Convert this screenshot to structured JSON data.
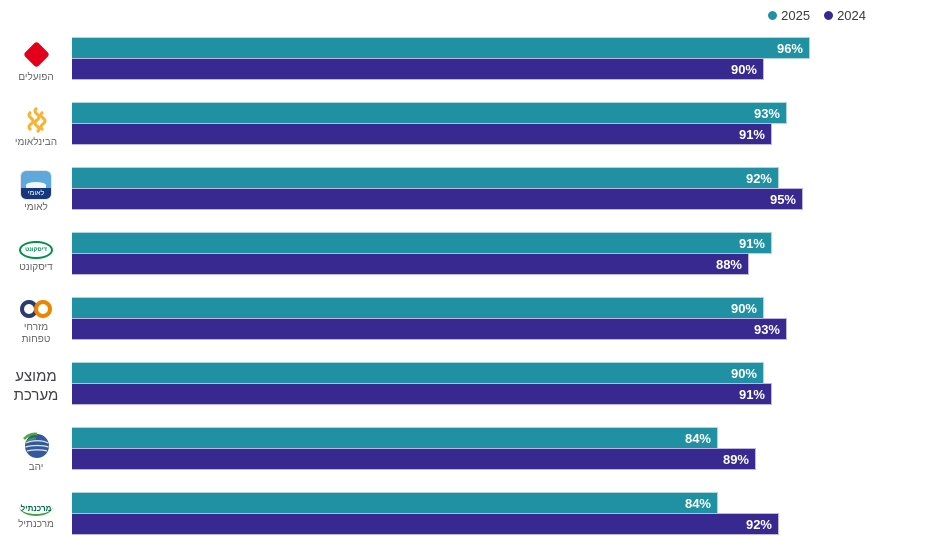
{
  "chart_data": {
    "type": "bar",
    "orientation": "horizontal",
    "title": "",
    "xlabel": "",
    "ylabel": "",
    "value_suffix": "%",
    "xlim": [
      0,
      100
    ],
    "grid": false,
    "legend_position": "top-right",
    "categories": [
      "הפועלים",
      "הבינלאומי",
      "לאומי",
      "דיסקונט",
      "מזרחי טפחות",
      "ממוצע מערכת",
      "יהב",
      "מרכנתיל"
    ],
    "series": [
      {
        "name": "2025",
        "color": "#1f91a2",
        "values": [
          96,
          93,
          92,
          91,
          90,
          90,
          84,
          84
        ]
      },
      {
        "name": "2024",
        "color": "#37298f",
        "values": [
          90,
          91,
          95,
          88,
          93,
          91,
          89,
          92
        ]
      }
    ],
    "rows_meta": [
      {
        "icon": "bank-hapoalim-logo-icon",
        "icon_text": "",
        "label_lines": [
          "הפועלים"
        ],
        "emphasis": false
      },
      {
        "icon": "bank-international-logo-icon",
        "icon_text": "",
        "label_lines": [
          "הבינלאומי"
        ],
        "emphasis": false
      },
      {
        "icon": "bank-leumi-logo-icon",
        "icon_text": "לאומי",
        "label_lines": [
          "לאומי"
        ],
        "emphasis": false
      },
      {
        "icon": "bank-discount-logo-icon",
        "icon_text": "דיסקונט",
        "label_lines": [
          "דיסקונט"
        ],
        "emphasis": false
      },
      {
        "icon": "bank-mizrahi-tefahot-logo-icon",
        "icon_text": "",
        "label_lines": [
          "מזרחי",
          "טפחות"
        ],
        "emphasis": false
      },
      {
        "icon": null,
        "icon_text": "",
        "label_lines": [
          "ממוצע",
          "מערכת"
        ],
        "emphasis": true
      },
      {
        "icon": "bank-yahav-logo-icon",
        "icon_text": "",
        "label_lines": [
          "יהב"
        ],
        "emphasis": false
      },
      {
        "icon": "bank-mercantile-logo-icon",
        "icon_text": "מרכנתיל",
        "label_lines": [
          "מרכנתיל"
        ],
        "emphasis": false
      }
    ]
  },
  "colors": {
    "series_2025": "#1f91a2",
    "series_2024": "#37298f",
    "bar_value_text": "#ffffff",
    "category_label": "#666666",
    "emphasis_label": "#3f3f4b",
    "legend_text": "#3a3a3a",
    "hapoalim_red": "#e2001a",
    "international_yellow": "#f9b233",
    "leumi_light_blue": "#5fa8dc",
    "leumi_dark_blue": "#16377e",
    "discount_green": "#00914c",
    "mizrahi_navy": "#2a3b72",
    "mizrahi_orange": "#ee8500",
    "yahav_blue": "#33589b",
    "yahav_green": "#4fa83d",
    "mercantile_green": "#006b3f"
  }
}
